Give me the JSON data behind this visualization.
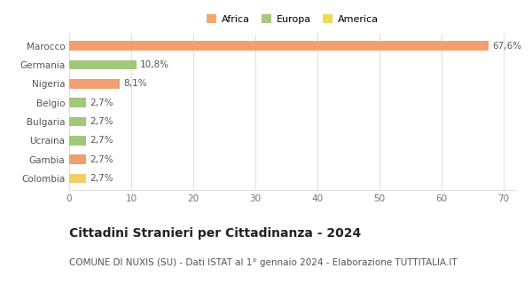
{
  "categories": [
    "Colombia",
    "Gambia",
    "Ucraina",
    "Bulgaria",
    "Belgio",
    "Nigeria",
    "Germania",
    "Marocco"
  ],
  "values": [
    2.7,
    2.7,
    2.7,
    2.7,
    2.7,
    8.1,
    10.8,
    67.6
  ],
  "colors": [
    "#f0d060",
    "#f0a070",
    "#a0c878",
    "#a0c878",
    "#a0c878",
    "#f0a070",
    "#a0c878",
    "#f0a070"
  ],
  "labels": [
    "2,7%",
    "2,7%",
    "2,7%",
    "2,7%",
    "2,7%",
    "8,1%",
    "10,8%",
    "67,6%"
  ],
  "title": "Cittadini Stranieri per Cittadinanza - 2024",
  "subtitle": "COMUNE DI NUXIS (SU) - Dati ISTAT al 1° gennaio 2024 - Elaborazione TUTTITALIA.IT",
  "xlim": [
    0,
    72
  ],
  "xticks": [
    0,
    10,
    20,
    30,
    40,
    50,
    60,
    70
  ],
  "legend_items": [
    {
      "label": "Africa",
      "color": "#f0a870"
    },
    {
      "label": "Europa",
      "color": "#a8c880"
    },
    {
      "label": "America",
      "color": "#f0d858"
    }
  ],
  "background_color": "#ffffff",
  "bar_height": 0.5,
  "label_fontsize": 7.5,
  "title_fontsize": 10,
  "subtitle_fontsize": 7.5,
  "tick_fontsize": 7.5
}
